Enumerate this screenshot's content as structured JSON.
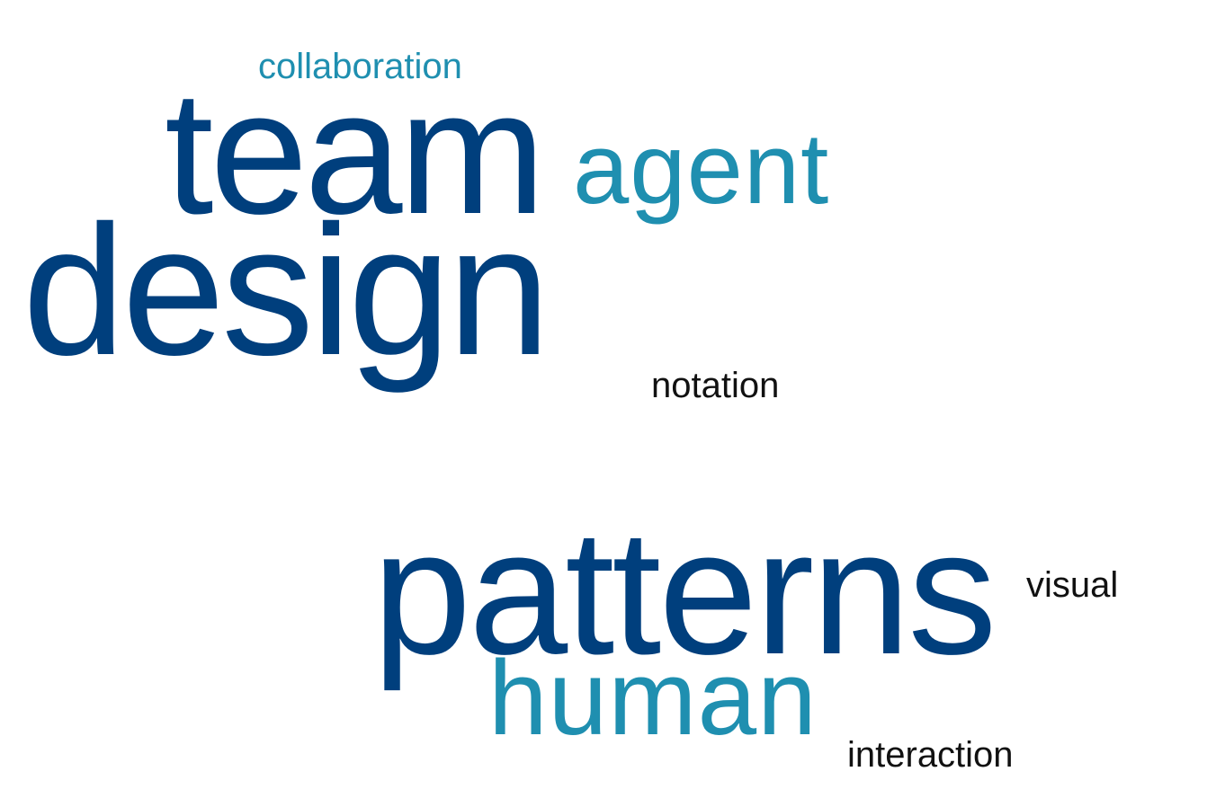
{
  "word_cloud": {
    "colors": {
      "tier_1": "#003f7d",
      "tier_2": "#1f8fb0",
      "tier_3": "#111111"
    },
    "words": [
      {
        "text": "collaboration",
        "tier": 2
      },
      {
        "text": "team",
        "tier": 1
      },
      {
        "text": "agent",
        "tier": 2
      },
      {
        "text": "design",
        "tier": 1
      },
      {
        "text": "notation",
        "tier": 3
      },
      {
        "text": "patterns",
        "tier": 1
      },
      {
        "text": "visual",
        "tier": 3
      },
      {
        "text": "human",
        "tier": 2
      },
      {
        "text": "interaction",
        "tier": 3
      }
    ]
  }
}
